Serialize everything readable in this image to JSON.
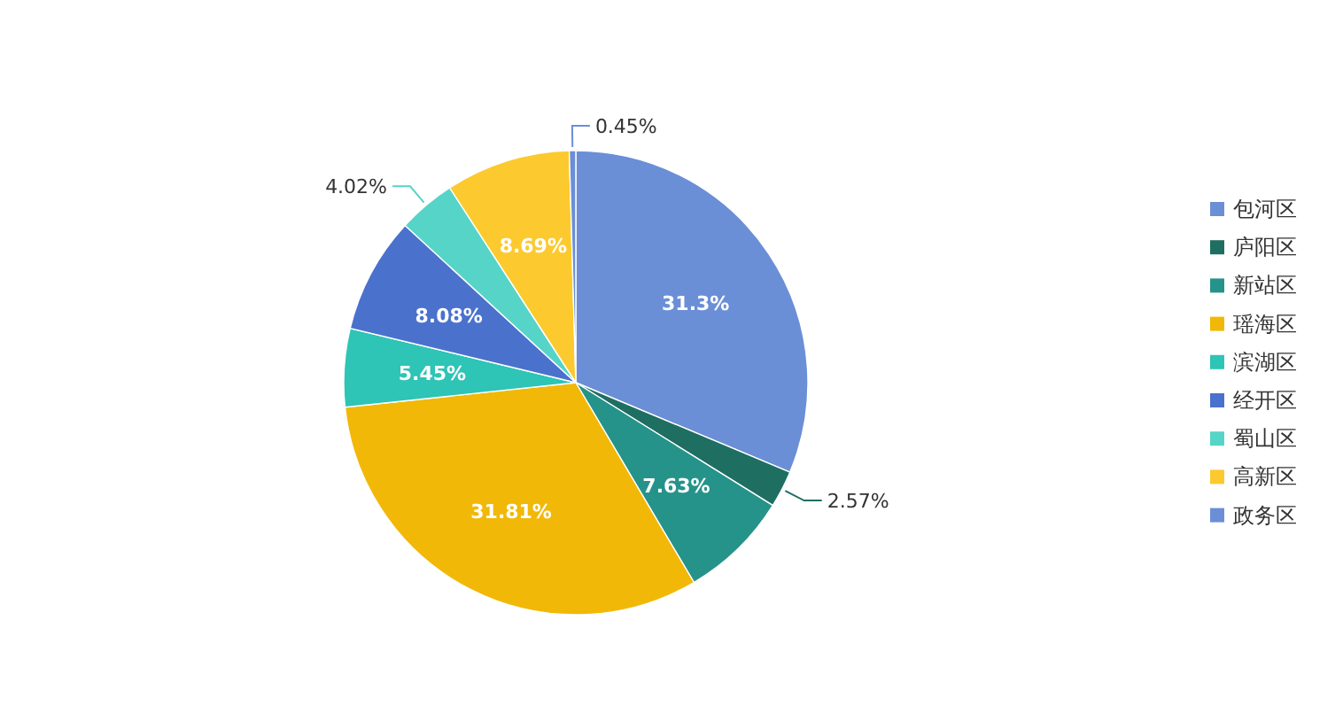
{
  "chart_data": {
    "type": "pie",
    "categories": [
      "包河区",
      "庐阳区",
      "新站区",
      "瑶海区",
      "滨湖区",
      "经开区",
      "蜀山区",
      "高新区",
      "政务区"
    ],
    "values": [
      31.3,
      2.57,
      7.63,
      31.81,
      5.45,
      8.08,
      4.02,
      8.69,
      0.45
    ],
    "value_labels": [
      "31.3%",
      "2.57%",
      "7.63%",
      "31.81%",
      "5.45%",
      "8.08%",
      "4.02%",
      "8.69%",
      "0.45%"
    ],
    "colors": [
      "#6b8fd6",
      "#1f6e62",
      "#26938a",
      "#f2b807",
      "#2ec4b6",
      "#4a72cc",
      "#56d4c8",
      "#fcc92f",
      "#6b8fd6"
    ],
    "legend": "right"
  }
}
